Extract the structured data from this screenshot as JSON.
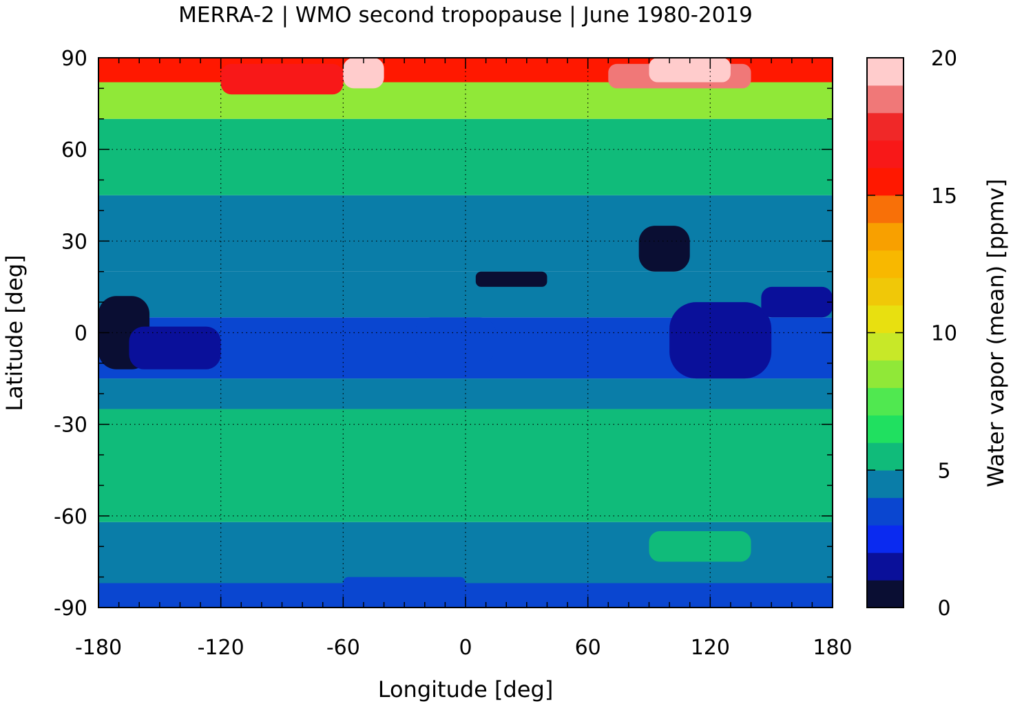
{
  "chart_data": {
    "type": "heatmap",
    "title": "MERRA-2 | WMO second tropopause | June 1980-2019",
    "xlabel": "Longitude [deg]",
    "ylabel": "Latitude [deg]",
    "xlim": [
      -180,
      180
    ],
    "ylim": [
      -90,
      90
    ],
    "xticks": [
      -180,
      -120,
      -60,
      0,
      60,
      120,
      180
    ],
    "yticks": [
      -90,
      -60,
      -30,
      0,
      30,
      60,
      90
    ],
    "grid": true,
    "colorbar": {
      "label": "Water vapor (mean) [ppmv]",
      "range": [
        0,
        20
      ],
      "ticks": [
        0,
        5,
        10,
        15,
        20
      ],
      "placement": "right",
      "colors": [
        "#0a0e33",
        "#0a109a",
        "#0a2af0",
        "#0a46d0",
        "#0a7da8",
        "#10bb7a",
        "#20e060",
        "#50e850",
        "#90e838",
        "#c8e828",
        "#e8e010",
        "#f0c808",
        "#f8b800",
        "#f8a000",
        "#f87008",
        "#ff1800",
        "#f81818",
        "#f02828",
        "#f07878",
        "#ffcccc"
      ]
    },
    "bands": [
      {
        "lat": [
          -90,
          -82
        ],
        "value": 3.8
      },
      {
        "lat": [
          -82,
          -62
        ],
        "value": 4.6
      },
      {
        "lat": [
          -62,
          -25
        ],
        "value": 5.6
      },
      {
        "lat": [
          -25,
          -15
        ],
        "value": 4.6
      },
      {
        "lat": [
          -15,
          5
        ],
        "value": 3.6
      },
      {
        "lat": [
          5,
          20
        ],
        "value": 4.4
      },
      {
        "lat": [
          20,
          45
        ],
        "value": 4.7
      },
      {
        "lat": [
          45,
          70
        ],
        "value": 5.7
      },
      {
        "lat": [
          70,
          82
        ],
        "value": 8.0
      },
      {
        "lat": [
          82,
          90
        ],
        "value": 15.5
      }
    ],
    "anomalies": [
      {
        "lon": [
          -180,
          -155
        ],
        "lat": [
          -12,
          12
        ],
        "value": 0.8
      },
      {
        "lon": [
          -165,
          -120
        ],
        "lat": [
          -12,
          2
        ],
        "value": 1.0
      },
      {
        "lon": [
          -25,
          15
        ],
        "lat": [
          -10,
          5
        ],
        "value": 3.6
      },
      {
        "lon": [
          5,
          40
        ],
        "lat": [
          15,
          20
        ],
        "value": 0.8
      },
      {
        "lon": [
          85,
          110
        ],
        "lat": [
          20,
          35
        ],
        "value": 0.5
      },
      {
        "lon": [
          100,
          150
        ],
        "lat": [
          -15,
          10
        ],
        "value": 1.5
      },
      {
        "lon": [
          145,
          180
        ],
        "lat": [
          5,
          15
        ],
        "value": 1.2
      },
      {
        "lon": [
          90,
          140
        ],
        "lat": [
          -75,
          -65
        ],
        "value": 5.6
      },
      {
        "lon": [
          -60,
          0
        ],
        "lat": [
          -85,
          -80
        ],
        "value": 3.8
      },
      {
        "lon": [
          -120,
          -60
        ],
        "lat": [
          78,
          88
        ],
        "value": 16.0
      },
      {
        "lon": [
          70,
          140
        ],
        "lat": [
          80,
          88
        ],
        "value": 18.0
      },
      {
        "lon": [
          -60,
          -40
        ],
        "lat": [
          80,
          90
        ],
        "value": 19.5
      },
      {
        "lon": [
          90,
          130
        ],
        "lat": [
          82,
          90
        ],
        "value": 19.5
      }
    ]
  }
}
